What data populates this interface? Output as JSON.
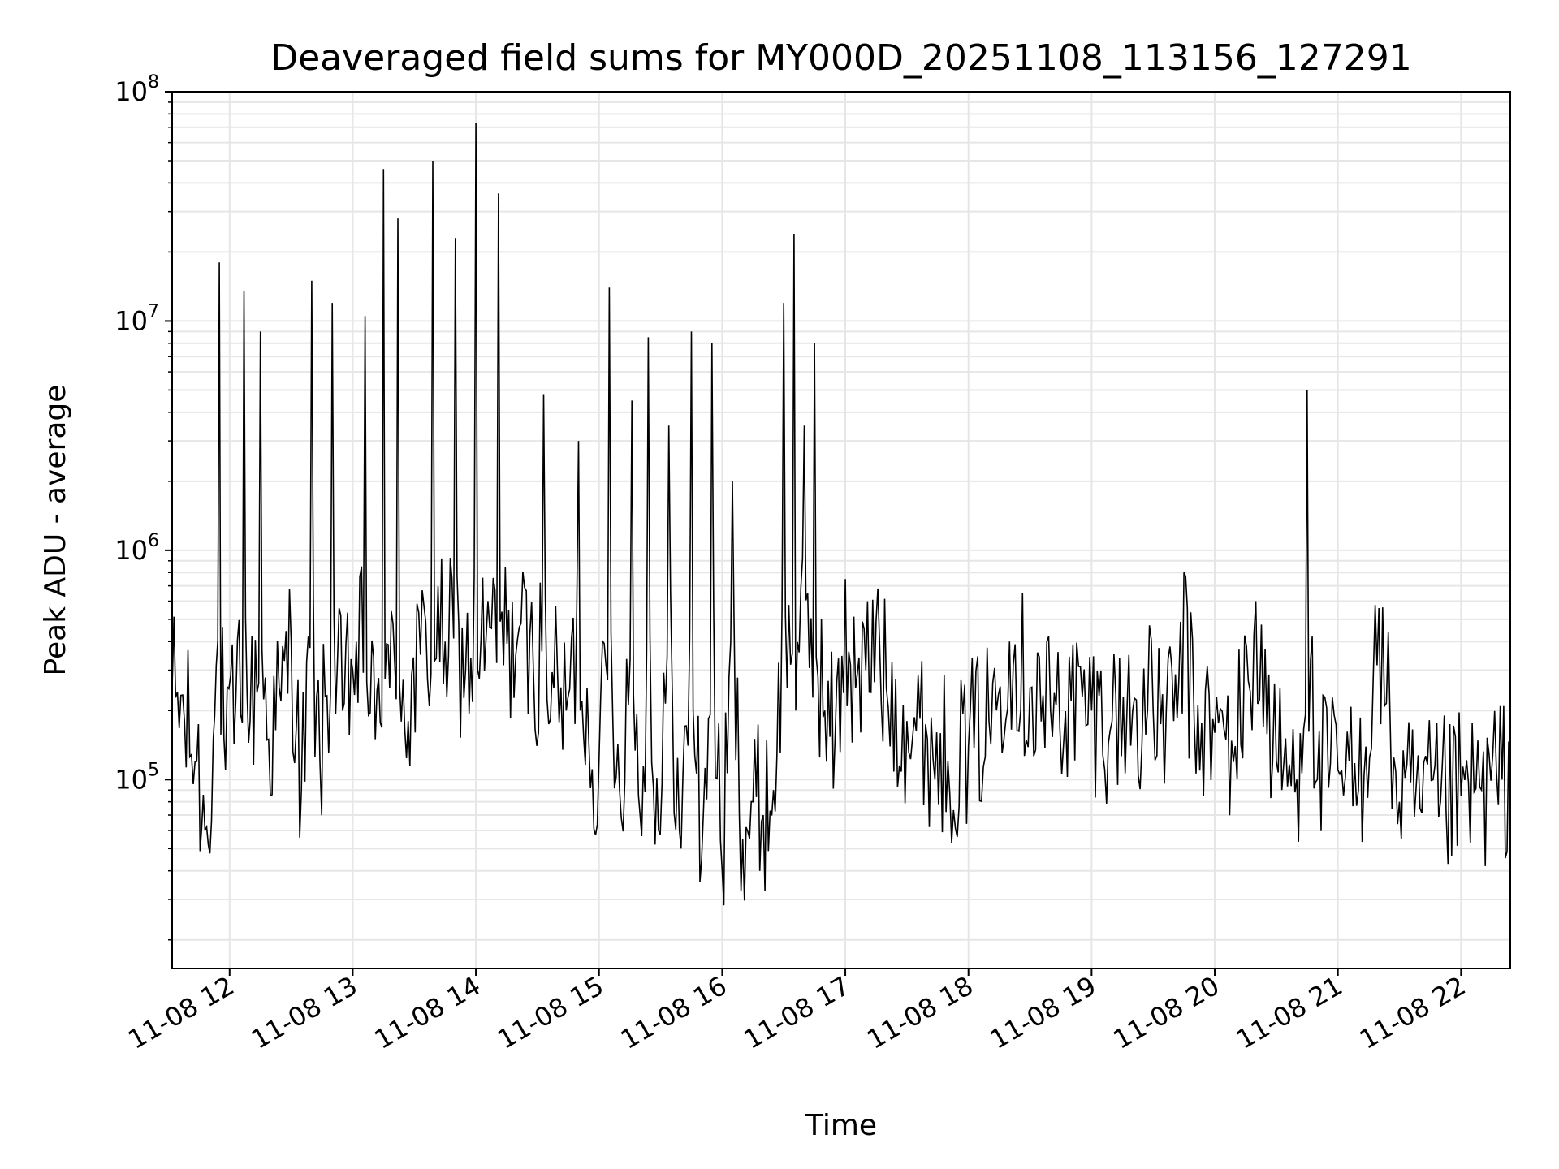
{
  "chart_data": {
    "type": "line",
    "title": "Deaveraged field sums for MY000D_20251108_113156_127291",
    "xlabel": "Time",
    "ylabel": "Peak ADU - average",
    "y_scale": "log",
    "ylim": [
      15000,
      100000000
    ],
    "xlim": [
      "2025-11-08 11:32",
      "2025-11-08 22:24"
    ],
    "x_ticks": [
      {
        "time": "2025-11-08 12:00",
        "label": "11-08 12"
      },
      {
        "time": "2025-11-08 13:00",
        "label": "11-08 13"
      },
      {
        "time": "2025-11-08 14:00",
        "label": "11-08 14"
      },
      {
        "time": "2025-11-08 15:00",
        "label": "11-08 15"
      },
      {
        "time": "2025-11-08 16:00",
        "label": "11-08 16"
      },
      {
        "time": "2025-11-08 17:00",
        "label": "11-08 17"
      },
      {
        "time": "2025-11-08 18:00",
        "label": "11-08 18"
      },
      {
        "time": "2025-11-08 19:00",
        "label": "11-08 19"
      },
      {
        "time": "2025-11-08 20:00",
        "label": "11-08 20"
      },
      {
        "time": "2025-11-08 21:00",
        "label": "11-08 21"
      },
      {
        "time": "2025-11-08 22:00",
        "label": "11-08 22"
      }
    ],
    "y_ticks": [
      {
        "value": 100000,
        "base": "10",
        "exp": "5"
      },
      {
        "value": 1000000,
        "base": "10",
        "exp": "6"
      },
      {
        "value": 10000000,
        "base": "10",
        "exp": "7"
      },
      {
        "value": 100000000,
        "base": "10",
        "exp": "8"
      }
    ],
    "grid": true,
    "legend": "none",
    "line_color": "#000000",
    "series": [
      {
        "values": [
          [
            "2025-11-08 11:32",
            250000
          ],
          [
            "2025-11-08 11:38",
            180000
          ],
          [
            "2025-11-08 11:44",
            120000
          ],
          [
            "2025-11-08 11:48",
            60000
          ],
          [
            "2025-11-08 11:52",
            150000
          ],
          [
            "2025-11-08 11:55",
            18000000
          ],
          [
            "2025-11-08 11:58",
            110000
          ],
          [
            "2025-11-08 12:03",
            220000
          ],
          [
            "2025-11-08 12:07",
            13500000
          ],
          [
            "2025-11-08 12:10",
            180000
          ],
          [
            "2025-11-08 12:15",
            9000000
          ],
          [
            "2025-11-08 12:19",
            150000
          ],
          [
            "2025-11-08 12:25",
            220000
          ],
          [
            "2025-11-08 12:30",
            400000
          ],
          [
            "2025-11-08 12:35",
            90000
          ],
          [
            "2025-11-08 12:40",
            15000000
          ],
          [
            "2025-11-08 12:44",
            120000
          ],
          [
            "2025-11-08 12:50",
            12000000
          ],
          [
            "2025-11-08 12:55",
            200000
          ],
          [
            "2025-11-08 13:00",
            300000
          ],
          [
            "2025-11-08 13:06",
            10500000
          ],
          [
            "2025-11-08 13:11",
            150000
          ],
          [
            "2025-11-08 13:15",
            46000000
          ],
          [
            "2025-11-08 13:18",
            250000
          ],
          [
            "2025-11-08 13:22",
            28000000
          ],
          [
            "2025-11-08 13:27",
            180000
          ],
          [
            "2025-11-08 13:33",
            350000
          ],
          [
            "2025-11-08 13:39",
            50000000
          ],
          [
            "2025-11-08 13:45",
            400000
          ],
          [
            "2025-11-08 13:50",
            23000000
          ],
          [
            "2025-11-08 13:55",
            300000
          ],
          [
            "2025-11-08 14:00",
            73000000
          ],
          [
            "2025-11-08 14:05",
            420000
          ],
          [
            "2025-11-08 14:11",
            36000000
          ],
          [
            "2025-11-08 14:16",
            550000
          ],
          [
            "2025-11-08 14:22",
            480000
          ],
          [
            "2025-11-08 14:28",
            300000
          ],
          [
            "2025-11-08 14:33",
            4800000
          ],
          [
            "2025-11-08 14:38",
            250000
          ],
          [
            "2025-11-08 14:44",
            200000
          ],
          [
            "2025-11-08 14:50",
            3000000
          ],
          [
            "2025-11-08 14:55",
            150000
          ],
          [
            "2025-11-08 15:00",
            120000
          ],
          [
            "2025-11-08 15:05",
            14000000
          ],
          [
            "2025-11-08 15:10",
            90000
          ],
          [
            "2025-11-08 15:16",
            4500000
          ],
          [
            "2025-11-08 15:20",
            70000
          ],
          [
            "2025-11-08 15:24",
            8500000
          ],
          [
            "2025-11-08 15:29",
            60000
          ],
          [
            "2025-11-08 15:34",
            3500000
          ],
          [
            "2025-11-08 15:40",
            50000
          ],
          [
            "2025-11-08 15:45",
            9000000
          ],
          [
            "2025-11-08 15:50",
            45000
          ],
          [
            "2025-11-08 15:55",
            8000000
          ],
          [
            "2025-11-08 16:00",
            40000
          ],
          [
            "2025-11-08 16:05",
            2000000
          ],
          [
            "2025-11-08 16:10",
            55000
          ],
          [
            "2025-11-08 16:15",
            80000
          ],
          [
            "2025-11-08 16:20",
            70000
          ],
          [
            "2025-11-08 16:25",
            90000
          ],
          [
            "2025-11-08 16:30",
            12000000
          ],
          [
            "2025-11-08 16:35",
            24000000
          ],
          [
            "2025-11-08 16:40",
            3500000
          ],
          [
            "2025-11-08 16:45",
            8000000
          ],
          [
            "2025-11-08 16:50",
            200000
          ],
          [
            "2025-11-08 16:55",
            150000
          ],
          [
            "2025-11-08 17:00",
            750000
          ],
          [
            "2025-11-08 17:05",
            250000
          ],
          [
            "2025-11-08 17:10",
            300000
          ],
          [
            "2025-11-08 17:15",
            500000
          ],
          [
            "2025-11-08 17:20",
            250000
          ],
          [
            "2025-11-08 17:30",
            180000
          ],
          [
            "2025-11-08 17:40",
            150000
          ],
          [
            "2025-11-08 17:50",
            120000
          ],
          [
            "2025-11-08 18:00",
            140000
          ],
          [
            "2025-11-08 18:10",
            180000
          ],
          [
            "2025-11-08 18:20",
            400000
          ],
          [
            "2025-11-08 18:30",
            250000
          ],
          [
            "2025-11-08 18:40",
            200000
          ],
          [
            "2025-11-08 18:50",
            220000
          ],
          [
            "2025-11-08 19:00",
            200000
          ],
          [
            "2025-11-08 19:10",
            180000
          ],
          [
            "2025-11-08 19:20",
            200000
          ],
          [
            "2025-11-08 19:30",
            200000
          ],
          [
            "2025-11-08 19:40",
            180000
          ],
          [
            "2025-11-08 19:45",
            800000
          ],
          [
            "2025-11-08 19:50",
            180000
          ],
          [
            "2025-11-08 20:00",
            160000
          ],
          [
            "2025-11-08 20:10",
            140000
          ],
          [
            "2025-11-08 20:20",
            600000
          ],
          [
            "2025-11-08 20:30",
            120000
          ],
          [
            "2025-11-08 20:40",
            100000
          ],
          [
            "2025-11-08 20:45",
            5000000
          ],
          [
            "2025-11-08 20:50",
            100000
          ],
          [
            "2025-11-08 21:00",
            110000
          ],
          [
            "2025-11-08 21:10",
            90000
          ],
          [
            "2025-11-08 21:20",
            560000
          ],
          [
            "2025-11-08 21:30",
            80000
          ],
          [
            "2025-11-08 21:40",
            75000
          ],
          [
            "2025-11-08 21:50",
            80000
          ],
          [
            "2025-11-08 22:00",
            85000
          ],
          [
            "2025-11-08 22:10",
            90000
          ],
          [
            "2025-11-08 22:20",
            100000
          ],
          [
            "2025-11-08 22:24",
            110000
          ]
        ]
      }
    ]
  }
}
